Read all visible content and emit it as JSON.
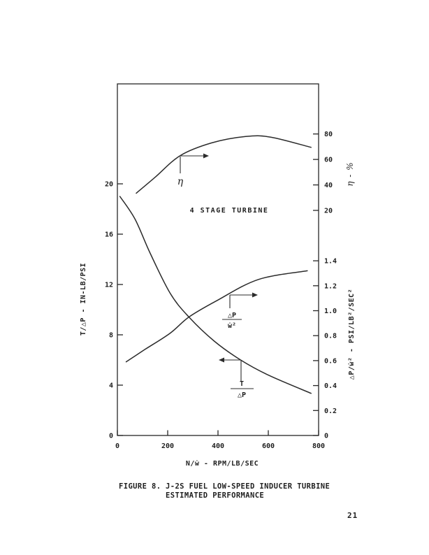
{
  "page": {
    "number": "21"
  },
  "caption": {
    "figure_label": "FIGURE 8.",
    "title_line1": "J-2S FUEL LOW-SPEED INDUCER TURBINE",
    "title_line2": "ESTIMATED PERFORMANCE"
  },
  "chart_data": {
    "type": "line",
    "annotation": "4 STAGE TURBINE",
    "grid": false,
    "x_axis": {
      "label": "N/ẇ - RPM/LB/SEC",
      "range": [
        0,
        800
      ],
      "ticks": [
        0,
        200,
        400,
        600,
        800
      ]
    },
    "left_axis": {
      "label": "T/△P - IN-LB/PSI",
      "range": [
        0,
        28
      ],
      "ticks": [
        0,
        4,
        8,
        12,
        16,
        20
      ]
    },
    "right_axis_eta": {
      "label": "η - %",
      "ticks": [
        20,
        40,
        60,
        80
      ]
    },
    "right_axis_dp": {
      "label": "△P/ẇ² - PSI/LB²/SEC²",
      "range": [
        0,
        1.55
      ],
      "ticks": [
        0,
        0.2,
        0.4,
        0.6,
        0.8,
        1.0,
        1.2,
        1.4
      ]
    },
    "series": [
      {
        "name": "eta",
        "axis": "eta",
        "label": "η",
        "points": [
          [
            75,
            33.5
          ],
          [
            150,
            46
          ],
          [
            250,
            63
          ],
          [
            375,
            73
          ],
          [
            510,
            78
          ],
          [
            610,
            77.5
          ],
          [
            770,
            69.5
          ]
        ]
      },
      {
        "name": "dp-over-wdot2",
        "axis": "dp",
        "label_numerator": "△P",
        "label_denominator": "ẇ²",
        "points": [
          [
            35,
            0.59
          ],
          [
            110,
            0.69
          ],
          [
            210,
            0.82
          ],
          [
            285,
            0.95
          ],
          [
            395,
            1.08
          ],
          [
            560,
            1.25
          ],
          [
            755,
            1.32
          ]
        ]
      },
      {
        "name": "t-over-dp",
        "axis": "left",
        "label_numerator": "T",
        "label_denominator": "△P",
        "points": [
          [
            10,
            19.0
          ],
          [
            70,
            17.2
          ],
          [
            130,
            14.5
          ],
          [
            210,
            11.3
          ],
          [
            285,
            9.4
          ],
          [
            385,
            7.5
          ],
          [
            490,
            6.0
          ],
          [
            600,
            4.8
          ],
          [
            770,
            3.35
          ]
        ]
      }
    ]
  }
}
